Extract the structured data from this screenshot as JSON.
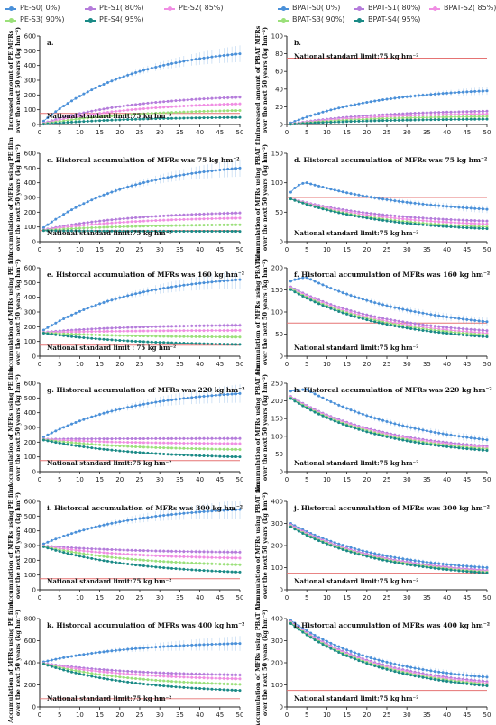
{
  "legend_left": [
    {
      "label": "PE-S0( 0%)",
      "color": "#4a90d9"
    },
    {
      "label": "PE-S1( 80%)",
      "color": "#b57cdb"
    },
    {
      "label": "PE-S2( 85%)",
      "color": "#f08ee3"
    },
    {
      "label": "PE-S3( 90%)",
      "color": "#9be07a"
    },
    {
      "label": "PE-S4( 95%)",
      "color": "#1a8a86"
    }
  ],
  "legend_right": [
    {
      "label": "BPAT-S0( 0%)",
      "color": "#4a90d9"
    },
    {
      "label": "BPAT-S1( 80%)",
      "color": "#b57cdb"
    },
    {
      "label": "BPAT-S2( 85%)",
      "color": "#f08ee3"
    },
    {
      "label": "BPAT-S3( 90%)",
      "color": "#9be07a"
    },
    {
      "label": "BPAT-S4( 95%)",
      "color": "#1a8a86"
    }
  ],
  "chart_data": [
    {
      "id": "a",
      "type": "line",
      "title": "a.",
      "ylabel": [
        "Increased amount of PE MFRs",
        "over the next 50 years (kg hm⁻²)"
      ],
      "xlim": [
        0,
        50
      ],
      "ylim": [
        0,
        600
      ],
      "yticks": [
        0,
        100,
        200,
        300,
        400,
        500,
        600
      ],
      "xticks": [
        0,
        5,
        10,
        15,
        20,
        25,
        30,
        35,
        40,
        45,
        50
      ],
      "standard_label": "National standard limit:75 kg hm⁻²",
      "standard": 75,
      "series": [
        {
          "name": "PE-S0( 0%)",
          "start": 0,
          "end": 480
        },
        {
          "name": "PE-S1( 80%)",
          "start": 0,
          "end": 185
        },
        {
          "name": "PE-S2( 85%)",
          "start": 0,
          "end": 140
        },
        {
          "name": "PE-S3( 90%)",
          "start": 0,
          "end": 95
        },
        {
          "name": "PE-S4( 95%)",
          "start": 0,
          "end": 48
        }
      ]
    },
    {
      "id": "b",
      "type": "line",
      "title": "b.",
      "ylabel": [
        "Increased amount of PBAT MFRs",
        "over the next 50 years (kg hm⁻²)"
      ],
      "xlim": [
        0,
        50
      ],
      "ylim": [
        0,
        100
      ],
      "yticks": [
        0,
        20,
        40,
        60,
        80,
        100
      ],
      "xticks": [
        0,
        5,
        10,
        15,
        20,
        25,
        30,
        35,
        40,
        45,
        50
      ],
      "standard_label": "National standard limit:75 kg hm⁻²",
      "standard": 75,
      "series": [
        {
          "name": "BPAT-S0( 0%)",
          "start": 0,
          "end": 38
        },
        {
          "name": "BPAT-S1( 80%)",
          "start": 0,
          "end": 15
        },
        {
          "name": "BPAT-S2( 85%)",
          "start": 0,
          "end": 12
        },
        {
          "name": "BPAT-S3( 90%)",
          "start": 0,
          "end": 9
        },
        {
          "name": "BPAT-S4( 95%)",
          "start": 0,
          "end": 6
        }
      ]
    },
    {
      "id": "c",
      "type": "line",
      "title": "c. Historcal accumulation of MFRs was 75 kg hm⁻²",
      "ylabel": [
        "Accumulation of MFRs using PE film",
        "over the next 50 years (kg hm⁻²)"
      ],
      "xlim": [
        0,
        50
      ],
      "ylim": [
        0,
        600
      ],
      "yticks": [
        0,
        100,
        200,
        300,
        400,
        500,
        600
      ],
      "xticks": [
        0,
        5,
        10,
        15,
        20,
        25,
        30,
        35,
        40,
        45,
        50
      ],
      "standard_label": "National standard limit:75 kg hm⁻²",
      "standard": 75,
      "series": [
        {
          "name": "PE-S0( 0%)",
          "start": 75,
          "end": 500
        },
        {
          "name": "PE-S1( 80%)",
          "start": 75,
          "end": 195
        },
        {
          "name": "PE-S2( 85%)",
          "start": 75,
          "end": 160
        },
        {
          "name": "PE-S3( 90%)",
          "start": 75,
          "end": 115
        },
        {
          "name": "PE-S4( 95%)",
          "start": 75,
          "end": 70
        }
      ]
    },
    {
      "id": "d",
      "type": "line",
      "title": "d. Historcal accumulation of MFRs was 75 kg hm⁻²",
      "ylabel": [
        "Accumulation of MFRs using PBAT film",
        "over the next 50 years (kg hm⁻²)"
      ],
      "xlim": [
        0,
        50
      ],
      "ylim": [
        0,
        150
      ],
      "yticks": [
        0,
        50,
        100,
        150
      ],
      "xticks": [
        0,
        5,
        10,
        15,
        20,
        25,
        30,
        35,
        40,
        45,
        50
      ],
      "standard_label": "National standard limit:75 kg hm⁻²",
      "standard": 75,
      "series": [
        {
          "name": "BPAT-S0( 0%)",
          "start": 75,
          "end": 55,
          "peak": 100
        },
        {
          "name": "BPAT-S1( 80%)",
          "start": 75,
          "end": 35
        },
        {
          "name": "BPAT-S2( 85%)",
          "start": 75,
          "end": 30
        },
        {
          "name": "BPAT-S3( 90%)",
          "start": 75,
          "end": 25
        },
        {
          "name": "BPAT-S4( 95%)",
          "start": 75,
          "end": 22
        }
      ]
    },
    {
      "id": "e",
      "type": "line",
      "title": "e. Historcal accumulation of MFRs was 160 kg hm⁻²",
      "ylabel": [
        "Accumulation of MFRs using PE film",
        "over the next 50 years (kg hm⁻²)"
      ],
      "xlim": [
        0,
        50
      ],
      "ylim": [
        0,
        600
      ],
      "yticks": [
        0,
        100,
        200,
        300,
        400,
        500,
        600
      ],
      "xticks": [
        0,
        5,
        10,
        15,
        20,
        25,
        30,
        35,
        40,
        45,
        50
      ],
      "standard_label": "National standard limit : 75 kg hm⁻²",
      "standard": 75,
      "series": [
        {
          "name": "PE-S0( 0%)",
          "start": 160,
          "end": 520
        },
        {
          "name": "PE-S1( 80%)",
          "start": 160,
          "end": 210
        },
        {
          "name": "PE-S2( 85%)",
          "start": 160,
          "end": 175
        },
        {
          "name": "PE-S3( 90%)",
          "start": 160,
          "end": 130
        },
        {
          "name": "PE-S4( 95%)",
          "start": 160,
          "end": 80
        }
      ]
    },
    {
      "id": "f",
      "type": "line",
      "title": "f. Historcal accumulation of MFRs was 160 kg hm⁻²",
      "ylabel": [
        "Accumulation of MFRs using PBATfilm",
        "over the next 50 years (kg hm⁻²)"
      ],
      "xlim": [
        0,
        50
      ],
      "ylim": [
        0,
        200
      ],
      "yticks": [
        0,
        50,
        100,
        150,
        200
      ],
      "xticks": [
        0,
        5,
        10,
        15,
        20,
        25,
        30,
        35,
        40,
        45,
        50
      ],
      "standard_label": "National standard limit:75 kg hm⁻²",
      "standard": 75,
      "series": [
        {
          "name": "BPAT-S0( 0%)",
          "start": 165,
          "end": 78,
          "peak": 178
        },
        {
          "name": "BPAT-S1( 80%)",
          "start": 162,
          "end": 58
        },
        {
          "name": "BPAT-S2( 85%)",
          "start": 160,
          "end": 52
        },
        {
          "name": "BPAT-S3( 90%)",
          "start": 158,
          "end": 48
        },
        {
          "name": "BPAT-S4( 95%)",
          "start": 156,
          "end": 44
        }
      ]
    },
    {
      "id": "g",
      "type": "line",
      "title": "g. Historcal accumulation of MFRs was 220 kg hm⁻²",
      "ylabel": [
        "Accumulation of MFRs using PE film",
        "over the next 50 years (kg hm⁻²)"
      ],
      "xlim": [
        0,
        50
      ],
      "ylim": [
        0,
        600
      ],
      "yticks": [
        0,
        100,
        200,
        300,
        400,
        500,
        600
      ],
      "xticks": [
        0,
        5,
        10,
        15,
        20,
        25,
        30,
        35,
        40,
        45,
        50
      ],
      "standard_label": "National standard limit:75 kg hm⁻²",
      "standard": 75,
      "series": [
        {
          "name": "PE-S0( 0%)",
          "start": 220,
          "end": 530
        },
        {
          "name": "PE-S1( 80%)",
          "start": 220,
          "end": 225
        },
        {
          "name": "PE-S2( 85%)",
          "start": 220,
          "end": 190
        },
        {
          "name": "PE-S3( 90%)",
          "start": 220,
          "end": 150
        },
        {
          "name": "PE-S4( 95%)",
          "start": 220,
          "end": 100
        }
      ]
    },
    {
      "id": "h",
      "type": "line",
      "title": "h. Historcal accumulation of MFRs was 220 kg hm⁻²",
      "ylabel": [
        "Accumulation of MFRs using PBAT film",
        "over the next 50 years (kg hm⁻²)"
      ],
      "xlim": [
        0,
        50
      ],
      "ylim": [
        0,
        250
      ],
      "yticks": [
        0,
        50,
        100,
        150,
        200,
        250
      ],
      "xticks": [
        0,
        5,
        10,
        15,
        20,
        25,
        30,
        35,
        40,
        45,
        50
      ],
      "standard_label": "National standard limit:75 kg hm⁻²",
      "standard": 75,
      "series": [
        {
          "name": "BPAT-S0( 0%)",
          "start": 225,
          "end": 90,
          "peak": 232
        },
        {
          "name": "BPAT-S1( 80%)",
          "start": 220,
          "end": 72
        },
        {
          "name": "BPAT-S2( 85%)",
          "start": 218,
          "end": 68
        },
        {
          "name": "BPAT-S3( 90%)",
          "start": 216,
          "end": 64
        },
        {
          "name": "BPAT-S4( 95%)",
          "start": 214,
          "end": 60
        }
      ]
    },
    {
      "id": "i",
      "type": "line",
      "title": "i. Historcal accumulation of MFRs was 300 kg hm⁻²",
      "ylabel": [
        "Accumulation of MFRs using PE film",
        "over the next 50 years (kg hm⁻²)"
      ],
      "xlim": [
        0,
        50
      ],
      "ylim": [
        0,
        600
      ],
      "yticks": [
        0,
        100,
        200,
        300,
        400,
        500,
        600
      ],
      "xticks": [
        0,
        5,
        10,
        15,
        20,
        25,
        30,
        35,
        40,
        45,
        50
      ],
      "standard_label": "National standard limit:75 kg hm⁻²",
      "standard": 75,
      "series": [
        {
          "name": "PE-S0( 0%)",
          "start": 300,
          "end": 545
        },
        {
          "name": "PE-S1( 80%)",
          "start": 300,
          "end": 255
        },
        {
          "name": "PE-S2( 85%)",
          "start": 300,
          "end": 215
        },
        {
          "name": "PE-S3( 90%)",
          "start": 300,
          "end": 170
        },
        {
          "name": "PE-S4( 95%)",
          "start": 300,
          "end": 120
        }
      ]
    },
    {
      "id": "j",
      "type": "line",
      "title": "j. Historcal accumulation of MFRs was 300 kg hm⁻²",
      "ylabel": [
        "Accumulation of MFRs using PBAT film",
        "over the next 50 years (kg hm⁻²)"
      ],
      "xlim": [
        0,
        50
      ],
      "ylim": [
        0,
        400
      ],
      "yticks": [
        0,
        100,
        200,
        300,
        400
      ],
      "xticks": [
        0,
        5,
        10,
        15,
        20,
        25,
        30,
        35,
        40,
        45,
        50
      ],
      "standard_label": "National standard limit:75 kg hm⁻²",
      "standard": 75,
      "series": [
        {
          "name": "BPAT-S0( 0%)",
          "start": 310,
          "end": 100
        },
        {
          "name": "BPAT-S1( 80%)",
          "start": 305,
          "end": 88
        },
        {
          "name": "BPAT-S2( 85%)",
          "start": 302,
          "end": 84
        },
        {
          "name": "BPAT-S3( 90%)",
          "start": 298,
          "end": 80
        },
        {
          "name": "BPAT-S4( 95%)",
          "start": 295,
          "end": 76
        }
      ]
    },
    {
      "id": "k",
      "type": "line",
      "title": "k. Historcal accumulation of MFRs was 400 kg hm⁻²",
      "ylabel": [
        "Accumulation of MFRs using PE film",
        "over the next 50 years (kg hm⁻²)"
      ],
      "xlim": [
        0,
        50
      ],
      "ylim": [
        0,
        800
      ],
      "yticks": [
        0,
        200,
        400,
        600,
        800
      ],
      "xticks": [
        0,
        5,
        10,
        15,
        20,
        25,
        30,
        35,
        40,
        45,
        50
      ],
      "standard_label": "National standard limit:75 kg hm⁻²",
      "standard": 75,
      "series": [
        {
          "name": "PE-S0( 0%)",
          "start": 400,
          "end": 575
        },
        {
          "name": "PE-S1( 80%)",
          "start": 400,
          "end": 290
        },
        {
          "name": "PE-S2( 85%)",
          "start": 400,
          "end": 255
        },
        {
          "name": "PE-S3( 90%)",
          "start": 400,
          "end": 205
        },
        {
          "name": "PE-S4( 95%)",
          "start": 400,
          "end": 150
        }
      ]
    },
    {
      "id": "l",
      "type": "line",
      "title": "l. Historcal accumulation of MFRs was 400 kg hm⁻²",
      "ylabel": [
        "Accumulation of MFRs using PBAT film",
        "over the next 50 years (kg hm⁻²)"
      ],
      "xlim": [
        0,
        50
      ],
      "ylim": [
        0,
        400
      ],
      "yticks": [
        0,
        100,
        200,
        300,
        400
      ],
      "xticks": [
        0,
        5,
        10,
        15,
        20,
        25,
        30,
        35,
        40,
        45,
        50
      ],
      "standard_label": "National standard limit:75 kg hm⁻²",
      "standard": 75,
      "series": [
        {
          "name": "BPAT-S0( 0%)",
          "start": 405,
          "end": 135
        },
        {
          "name": "BPAT-S1( 80%)",
          "start": 400,
          "end": 115
        },
        {
          "name": "BPAT-S2( 85%)",
          "start": 398,
          "end": 108
        },
        {
          "name": "BPAT-S3( 90%)",
          "start": 395,
          "end": 102
        },
        {
          "name": "BPAT-S4( 95%)",
          "start": 392,
          "end": 96
        }
      ]
    }
  ]
}
